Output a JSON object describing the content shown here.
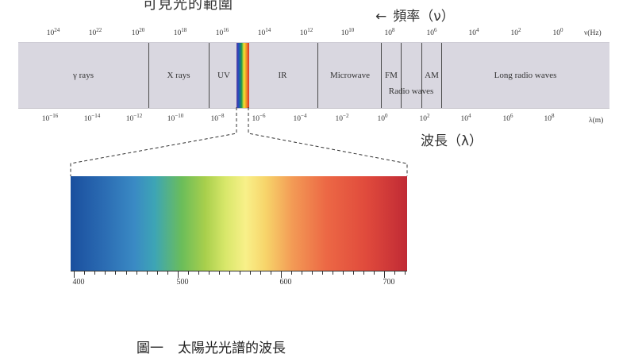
{
  "cut_title": "可見光的範圍",
  "frequency_caption": {
    "arrow": "←",
    "text": "頻率（ν）"
  },
  "frequency_axis": {
    "unit": "ν(Hz)",
    "ticks": [
      {
        "base": "10",
        "exp": "24"
      },
      {
        "base": "10",
        "exp": "22"
      },
      {
        "base": "10",
        "exp": "20"
      },
      {
        "base": "10",
        "exp": "18"
      },
      {
        "base": "10",
        "exp": "16"
      },
      {
        "base": "10",
        "exp": "14"
      },
      {
        "base": "10",
        "exp": "12"
      },
      {
        "base": "10",
        "exp": "10"
      },
      {
        "base": "10",
        "exp": "8"
      },
      {
        "base": "10",
        "exp": "6"
      },
      {
        "base": "10",
        "exp": "4"
      },
      {
        "base": "10",
        "exp": "2"
      },
      {
        "base": "10",
        "exp": "0"
      }
    ]
  },
  "bands": {
    "gamma": "γ rays",
    "xray": "X rays",
    "uv": "UV",
    "ir": "IR",
    "microwave": "Microwave",
    "fm": "FM",
    "am": "AM",
    "radio": "Radio waves",
    "long_radio": "Long radio waves"
  },
  "wavelength_axis": {
    "unit": "λ(m)",
    "ticks": [
      {
        "base": "10",
        "exp": "−16"
      },
      {
        "base": "10",
        "exp": "−14"
      },
      {
        "base": "10",
        "exp": "−12"
      },
      {
        "base": "10",
        "exp": "−10"
      },
      {
        "base": "10",
        "exp": "−8"
      },
      {
        "base": "10",
        "exp": "−6"
      },
      {
        "base": "10",
        "exp": "−4"
      },
      {
        "base": "10",
        "exp": "−2"
      },
      {
        "base": "10",
        "exp": "0"
      },
      {
        "base": "10",
        "exp": "2"
      },
      {
        "base": "10",
        "exp": "4"
      },
      {
        "base": "10",
        "exp": "6"
      },
      {
        "base": "10",
        "exp": "8"
      }
    ]
  },
  "wavelength_caption": "波長（λ）",
  "visible_axis": {
    "labels": [
      "400",
      "500",
      "600",
      "700"
    ]
  },
  "figure_caption": {
    "number": "圖一",
    "title": "太陽光光譜的波長"
  }
}
